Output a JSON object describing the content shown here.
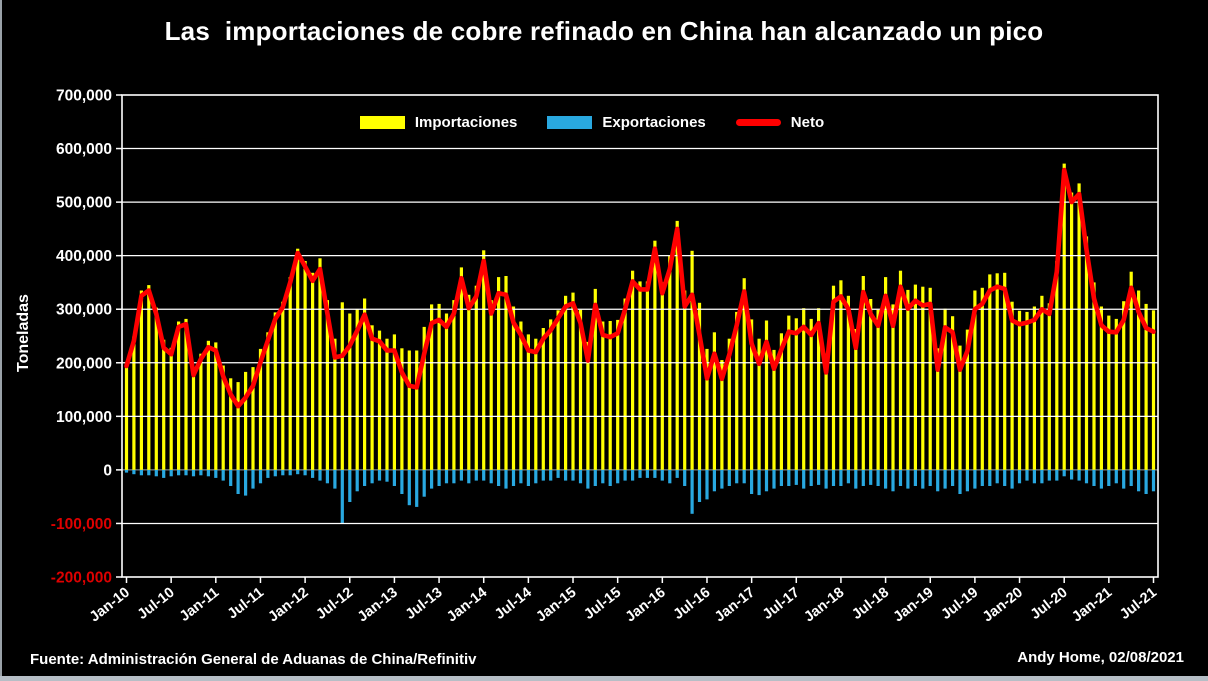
{
  "title": "Las  importaciones de cobre refinado en China han alcanzado un pico",
  "y_axis_title": "Toneladas",
  "legend": {
    "imports": "Importaciones",
    "exports": "Exportaciones",
    "net": "Neto"
  },
  "footer": {
    "source": "Fuente: Administración General de Aduanas de China/Refinitiv",
    "author": "Andy Home, 02/08/2021"
  },
  "chart_data": {
    "type": "bar-line-combo",
    "title": "Las  importaciones de cobre refinado en China han alcanzado un pico",
    "xlabel": "",
    "ylabel": "Toneladas",
    "x_start": "Jan-10",
    "x_end": "Jul-21",
    "x_interval": "monthly",
    "ylim": [
      -200000,
      700000
    ],
    "grid": true,
    "legend_position": "top-center-inside",
    "x_tick_labels": [
      "Jan-10",
      "Jul-10",
      "Jan-11",
      "Jul-11",
      "Jan-12",
      "Jul-12",
      "Jan-13",
      "Jul-13",
      "Jan-14",
      "Jul-14",
      "Jan-15",
      "Jul-15",
      "Jan-16",
      "Jul-16",
      "Jan-17",
      "Jul-17",
      "Jan-18",
      "Jul-18",
      "Jan-19",
      "Jul-19",
      "Jan-20",
      "Jul-20",
      "Jan-21",
      "Jul-21"
    ],
    "x_tick_step": 6,
    "y_ticks": [
      {
        "value": 700000,
        "label": "700,000"
      },
      {
        "value": 600000,
        "label": "600,000"
      },
      {
        "value": 500000,
        "label": "500,000"
      },
      {
        "value": 400000,
        "label": "400,000"
      },
      {
        "value": 300000,
        "label": "300,000"
      },
      {
        "value": 200000,
        "label": "200,000"
      },
      {
        "value": 100000,
        "label": "100,000"
      },
      {
        "value": 0,
        "label": "0"
      },
      {
        "value": -100000,
        "label": "-100,000"
      },
      {
        "value": -200000,
        "label": "-200,000"
      }
    ],
    "colors": {
      "imports": "#FFFF00",
      "exports": "#29A8E0",
      "net": "#FF0000",
      "grid": "#FFFFFF",
      "zero_line": "#9aa0a6",
      "tick_label": "#FFFFFF",
      "negative_tick_label": "#DD0000"
    },
    "imports": [
      199000,
      249000,
      335000,
      345000,
      303000,
      243000,
      228000,
      277000,
      282000,
      189000,
      217000,
      241000,
      238000,
      195000,
      171000,
      164000,
      183000,
      192000,
      226000,
      257000,
      294000,
      314000,
      360000,
      413000,
      390000,
      368000,
      395000,
      317000,
      245000,
      313000,
      292000,
      300000,
      320000,
      270000,
      260000,
      245000,
      253000,
      227000,
      223000,
      223000,
      267000,
      309000,
      310000,
      292000,
      317000,
      378000,
      327000,
      344000,
      410000,
      317000,
      360000,
      362000,
      305000,
      277000,
      253000,
      245000,
      265000,
      281000,
      298000,
      325000,
      331000,
      299000,
      239000,
      338000,
      277000,
      278000,
      280000,
      320000,
      372000,
      352000,
      352000,
      428000,
      350000,
      400000,
      465000,
      335000,
      409000,
      312000,
      226000,
      257000,
      205000,
      245000,
      295000,
      358000,
      281000,
      245000,
      279000,
      224000,
      255000,
      288000,
      283000,
      302000,
      282000,
      302000,
      217000,
      344000,
      354000,
      325000,
      263000,
      362000,
      319000,
      299000,
      360000,
      309000,
      372000,
      336000,
      346000,
      342000,
      340000,
      227000,
      301000,
      287000,
      232000,
      262000,
      335000,
      340000,
      365000,
      367000,
      368000,
      314000,
      297000,
      295000,
      305000,
      325000,
      311000,
      390000,
      572000,
      518000,
      535000,
      436000,
      350000,
      305000,
      288000,
      282000,
      315000,
      370000,
      335000,
      310000,
      298000
    ],
    "exports": [
      -5000,
      -8000,
      -10000,
      -10000,
      -12000,
      -15000,
      -12000,
      -10000,
      -10000,
      -12000,
      -10000,
      -12000,
      -15000,
      -20000,
      -30000,
      -45000,
      -48000,
      -35000,
      -25000,
      -15000,
      -12000,
      -10000,
      -10000,
      -8000,
      -10000,
      -15000,
      -20000,
      -25000,
      -35000,
      -100000,
      -60000,
      -40000,
      -30000,
      -25000,
      -20000,
      -22000,
      -30000,
      -45000,
      -66000,
      -69000,
      -50000,
      -35000,
      -30000,
      -25000,
      -25000,
      -20000,
      -25000,
      -20000,
      -20000,
      -25000,
      -30000,
      -35000,
      -30000,
      -25000,
      -30000,
      -25000,
      -20000,
      -20000,
      -15000,
      -20000,
      -20000,
      -25000,
      -35000,
      -30000,
      -25000,
      -30000,
      -25000,
      -20000,
      -20000,
      -15000,
      -15000,
      -15000,
      -20000,
      -25000,
      -15000,
      -30000,
      -82000,
      -60000,
      -55000,
      -40000,
      -35000,
      -30000,
      -25000,
      -25000,
      -45000,
      -47000,
      -40000,
      -35000,
      -30000,
      -30000,
      -28000,
      -35000,
      -30000,
      -28000,
      -35000,
      -30000,
      -30000,
      -25000,
      -35000,
      -30000,
      -28000,
      -30000,
      -35000,
      -40000,
      -30000,
      -35000,
      -30000,
      -35000,
      -30000,
      -40000,
      -35000,
      -30000,
      -45000,
      -40000,
      -35000,
      -30000,
      -30000,
      -25000,
      -30000,
      -35000,
      -25000,
      -20000,
      -25000,
      -25000,
      -20000,
      -20000,
      -12000,
      -18000,
      -20000,
      -25000,
      -30000,
      -35000,
      -30000,
      -25000,
      -35000,
      -30000,
      -40000,
      -45000,
      -40000
    ],
    "net": [
      194000,
      241000,
      325000,
      335000,
      291000,
      228000,
      216000,
      267000,
      272000,
      177000,
      207000,
      229000,
      223000,
      175000,
      141000,
      119000,
      135000,
      157000,
      201000,
      242000,
      282000,
      304000,
      350000,
      405000,
      380000,
      353000,
      375000,
      292000,
      210000,
      213000,
      232000,
      260000,
      290000,
      245000,
      240000,
      223000,
      223000,
      182000,
      157000,
      154000,
      217000,
      274000,
      280000,
      267000,
      292000,
      358000,
      302000,
      324000,
      390000,
      292000,
      330000,
      327000,
      275000,
      252000,
      223000,
      220000,
      245000,
      261000,
      283000,
      305000,
      311000,
      274000,
      204000,
      308000,
      252000,
      248000,
      255000,
      300000,
      352000,
      337000,
      337000,
      413000,
      330000,
      375000,
      450000,
      305000,
      327000,
      252000,
      171000,
      217000,
      170000,
      215000,
      270000,
      333000,
      236000,
      198000,
      239000,
      189000,
      225000,
      258000,
      255000,
      267000,
      252000,
      274000,
      182000,
      314000,
      324000,
      300000,
      228000,
      332000,
      291000,
      269000,
      325000,
      269000,
      342000,
      301000,
      316000,
      307000,
      310000,
      187000,
      266000,
      257000,
      187000,
      222000,
      300000,
      310000,
      335000,
      342000,
      338000,
      279000,
      272000,
      275000,
      280000,
      300000,
      291000,
      370000,
      560000,
      500000,
      515000,
      411000,
      320000,
      270000,
      258000,
      257000,
      280000,
      340000,
      295000,
      265000,
      258000
    ]
  }
}
